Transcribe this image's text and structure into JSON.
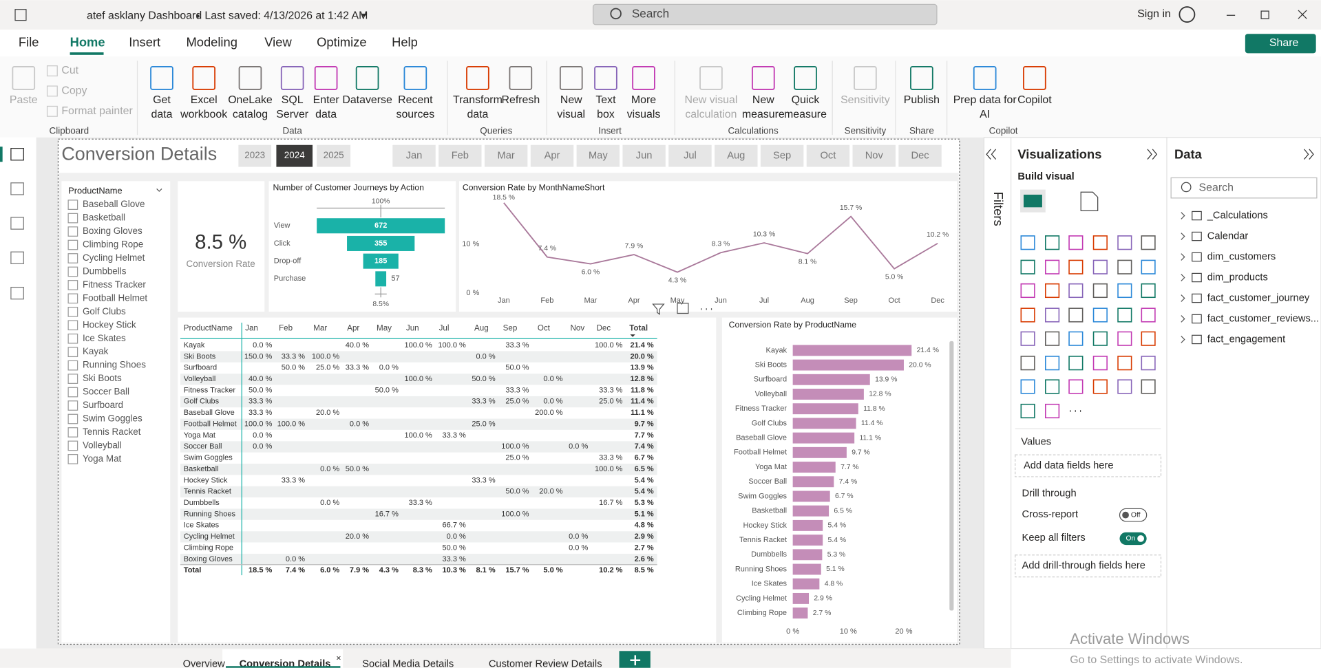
{
  "title_bar": {
    "file_name": "atef asklany Dashboard",
    "saved": "Last saved: 4/13/2026 at 1:42 AM",
    "search": "Search",
    "sign_in": "Sign in"
  },
  "menu": [
    "File",
    "Home",
    "Insert",
    "Modeling",
    "View",
    "Optimize",
    "Help"
  ],
  "share": "Share",
  "ribbon": [
    {
      "group": "Clipboard",
      "buttons": [
        [
          "Paste"
        ],
        [
          "Cut"
        ],
        [
          "Copy"
        ],
        [
          "Format painter"
        ]
      ]
    },
    {
      "group": "Data",
      "buttons": [
        [
          "Get",
          "data"
        ],
        [
          "Excel",
          "workbook"
        ],
        [
          "OneLake",
          "catalog"
        ],
        [
          "SQL",
          "Server"
        ],
        [
          "Enter",
          "data"
        ],
        [
          "Dataverse"
        ],
        [
          "Recent",
          "sources"
        ]
      ]
    },
    {
      "group": "Queries",
      "buttons": [
        [
          "Transform",
          "data"
        ],
        [
          "Refresh"
        ]
      ]
    },
    {
      "group": "Insert",
      "buttons": [
        [
          "New",
          "visual"
        ],
        [
          "Text",
          "box"
        ],
        [
          "More",
          "visuals"
        ]
      ]
    },
    {
      "group": "Calculations",
      "buttons": [
        [
          "New visual",
          "calculation"
        ],
        [
          "New",
          "measure"
        ],
        [
          "Quick",
          "measure"
        ]
      ]
    },
    {
      "group": "Sensitivity",
      "buttons": [
        [
          "Sensitivity"
        ]
      ]
    },
    {
      "group": "Share",
      "buttons": [
        [
          "Publish"
        ]
      ]
    },
    {
      "group": "Copilot",
      "buttons": [
        [
          "Prep data for",
          "AI"
        ],
        [
          "Copilot"
        ]
      ]
    }
  ],
  "report": {
    "title": "Conversion Details",
    "years": [
      "2023",
      "2024",
      "2025"
    ],
    "months": [
      "Jan",
      "Feb",
      "Mar",
      "Apr",
      "May",
      "Jun",
      "Jul",
      "Aug",
      "Sep",
      "Oct",
      "Nov",
      "Dec"
    ],
    "slicer": {
      "title": "ProductName",
      "items": [
        "Baseball Glove",
        "Basketball",
        "Boxing Gloves",
        "Climbing Rope",
        "Cycling Helmet",
        "Dumbbells",
        "Fitness Tracker",
        "Football Helmet",
        "Golf Clubs",
        "Hockey Stick",
        "Ice Skates",
        "Kayak",
        "Running Shoes",
        "Ski Boots",
        "Soccer Ball",
        "Surfboard",
        "Swim Goggles",
        "Tennis Racket",
        "Volleyball",
        "Yoga Mat"
      ]
    },
    "card": {
      "value": "8.5 %",
      "label": "Conversion Rate"
    },
    "matrix": {
      "columns": [
        "ProductName",
        "Jan",
        "Feb",
        "Mar",
        "Apr",
        "May",
        "Jun",
        "Jul",
        "Aug",
        "Sep",
        "Oct",
        "Nov",
        "Dec",
        "Total"
      ],
      "rows": [
        {
          "name": "Kayak",
          "cells": [
            "0.0 %",
            null,
            null,
            "40.0 %",
            null,
            "100.0 %",
            "100.0 %",
            null,
            "33.3 %",
            null,
            null,
            "100.0 %",
            "21.4 %"
          ]
        },
        {
          "name": "Ski Boots",
          "cells": [
            "150.0 %",
            "33.3 %",
            "100.0 %",
            null,
            null,
            null,
            null,
            "0.0 %",
            null,
            null,
            null,
            null,
            "20.0 %"
          ]
        },
        {
          "name": "Surfboard",
          "cells": [
            null,
            "50.0 %",
            "25.0 %",
            "33.3 %",
            "0.0 %",
            null,
            null,
            null,
            "50.0 %",
            null,
            null,
            null,
            "13.9 %"
          ]
        },
        {
          "name": "Volleyball",
          "cells": [
            "40.0 %",
            null,
            null,
            null,
            null,
            "100.0 %",
            null,
            "50.0 %",
            null,
            "0.0 %",
            null,
            null,
            "12.8 %"
          ]
        },
        {
          "name": "Fitness Tracker",
          "cells": [
            "50.0 %",
            null,
            null,
            null,
            "50.0 %",
            null,
            null,
            null,
            "33.3 %",
            null,
            null,
            "33.3 %",
            "11.8 %"
          ]
        },
        {
          "name": "Golf Clubs",
          "cells": [
            "33.3 %",
            null,
            null,
            null,
            null,
            null,
            null,
            "33.3 %",
            "25.0 %",
            "0.0 %",
            null,
            "25.0 %",
            "11.4 %"
          ]
        },
        {
          "name": "Baseball Glove",
          "cells": [
            "33.3 %",
            null,
            "20.0 %",
            null,
            null,
            null,
            null,
            null,
            null,
            "200.0 %",
            null,
            null,
            "11.1 %"
          ]
        },
        {
          "name": "Football Helmet",
          "cells": [
            "100.0 %",
            "100.0 %",
            null,
            "0.0 %",
            null,
            null,
            null,
            "25.0 %",
            null,
            null,
            null,
            null,
            "9.7 %"
          ]
        },
        {
          "name": "Yoga Mat",
          "cells": [
            "0.0 %",
            null,
            null,
            null,
            null,
            "100.0 %",
            "33.3 %",
            null,
            null,
            null,
            null,
            null,
            "7.7 %"
          ]
        },
        {
          "name": "Soccer Ball",
          "cells": [
            "0.0 %",
            null,
            null,
            null,
            null,
            null,
            null,
            null,
            "100.0 %",
            null,
            "0.0 %",
            null,
            "7.4 %"
          ]
        },
        {
          "name": "Swim Goggles",
          "cells": [
            null,
            null,
            null,
            null,
            null,
            null,
            null,
            null,
            "25.0 %",
            null,
            null,
            "33.3 %",
            "6.7 %"
          ]
        },
        {
          "name": "Basketball",
          "cells": [
            null,
            null,
            "0.0 %",
            "50.0 %",
            null,
            null,
            null,
            null,
            null,
            null,
            null,
            "100.0 %",
            "6.5 %"
          ]
        },
        {
          "name": "Hockey Stick",
          "cells": [
            null,
            "33.3 %",
            null,
            null,
            null,
            null,
            null,
            "33.3 %",
            null,
            null,
            null,
            null,
            "5.4 %"
          ]
        },
        {
          "name": "Tennis Racket",
          "cells": [
            null,
            null,
            null,
            null,
            null,
            null,
            null,
            null,
            "50.0 %",
            "20.0 %",
            null,
            null,
            "5.4 %"
          ]
        },
        {
          "name": "Dumbbells",
          "cells": [
            null,
            null,
            "0.0 %",
            null,
            null,
            "33.3 %",
            null,
            null,
            null,
            null,
            null,
            "16.7 %",
            "5.3 %"
          ]
        },
        {
          "name": "Running Shoes",
          "cells": [
            null,
            null,
            null,
            null,
            "16.7 %",
            null,
            null,
            null,
            "100.0 %",
            null,
            null,
            null,
            "5.1 %"
          ]
        },
        {
          "name": "Ice Skates",
          "cells": [
            null,
            null,
            null,
            null,
            null,
            null,
            "66.7 %",
            null,
            null,
            null,
            null,
            null,
            "4.8 %"
          ]
        },
        {
          "name": "Cycling Helmet",
          "cells": [
            null,
            null,
            null,
            "20.0 %",
            null,
            null,
            "0.0 %",
            null,
            null,
            null,
            "0.0 %",
            null,
            "2.9 %"
          ]
        },
        {
          "name": "Climbing Rope",
          "cells": [
            null,
            null,
            null,
            null,
            null,
            null,
            "50.0 %",
            null,
            null,
            null,
            "0.0 %",
            null,
            "2.7 %"
          ]
        },
        {
          "name": "Boxing Gloves",
          "cells": [
            null,
            "0.0 %",
            null,
            null,
            null,
            null,
            "33.3 %",
            null,
            null,
            null,
            null,
            null,
            "2.6 %"
          ]
        }
      ],
      "total": {
        "name": "Total",
        "cells": [
          "18.5 %",
          "7.4 %",
          "6.0 %",
          "7.9 %",
          "4.3 %",
          "8.3 %",
          "10.3 %",
          "8.1 %",
          "15.7 %",
          "5.0 %",
          null,
          "10.2 %",
          "8.5 %"
        ]
      }
    }
  },
  "chart_data": [
    {
      "type": "funnel",
      "title": "Number of Customer Journeys by Action",
      "categories": [
        "View",
        "Click",
        "Drop-off",
        "Purchase"
      ],
      "values": [
        672,
        355,
        185,
        57
      ],
      "color": "#1ab2a8",
      "annotations": [
        "100%",
        "8.5%"
      ]
    },
    {
      "type": "line",
      "title": "Conversion Rate by MonthNameShort",
      "categories": [
        "Jan",
        "Feb",
        "Mar",
        "Apr",
        "May",
        "Jun",
        "Jul",
        "Aug",
        "Sep",
        "Oct",
        "Dec"
      ],
      "values": [
        18.5,
        7.4,
        6.0,
        7.9,
        4.3,
        8.3,
        10.3,
        8.1,
        15.7,
        5.0,
        10.2
      ],
      "value_labels": [
        "18.5 %",
        "7.4 %",
        "6.0 %",
        "7.9 %",
        "4.3 %",
        "8.3 %",
        "10.3 %",
        "8.1 %",
        "15.7 %",
        "5.0 %",
        "10.2 %"
      ],
      "color": "#a9789a",
      "ylim": [
        0,
        20
      ],
      "yticks": [
        {
          "value": 0,
          "label": "0 %"
        },
        {
          "value": 10,
          "label": "10 %"
        }
      ]
    },
    {
      "type": "hbar",
      "title": "Conversion Rate by ProductName",
      "categories": [
        "Kayak",
        "Ski Boots",
        "Surfboard",
        "Volleyball",
        "Fitness Tracker",
        "Golf Clubs",
        "Baseball Glove",
        "Football Helmet",
        "Yoga Mat",
        "Soccer Ball",
        "Swim Goggles",
        "Basketball",
        "Hockey Stick",
        "Tennis Racket",
        "Dumbbells",
        "Running Shoes",
        "Ice Skates",
        "Cycling Helmet",
        "Climbing Rope"
      ],
      "values": [
        21.4,
        20.0,
        13.9,
        12.8,
        11.8,
        11.4,
        11.1,
        9.7,
        7.7,
        7.4,
        6.7,
        6.5,
        5.4,
        5.4,
        5.3,
        5.1,
        4.8,
        2.9,
        2.7
      ],
      "value_labels": [
        "21.4 %",
        "20.0 %",
        "13.9 %",
        "12.8 %",
        "11.8 %",
        "11.4 %",
        "11.1 %",
        "9.7 %",
        "7.7 %",
        "7.4 %",
        "6.7 %",
        "6.5 %",
        "5.4 %",
        "5.4 %",
        "5.3 %",
        "5.1 %",
        "4.8 %",
        "2.9 %",
        "2.7 %"
      ],
      "color": "#c48db8",
      "xlim": [
        0,
        25
      ],
      "xticks": [
        {
          "value": 0,
          "label": "0 %"
        },
        {
          "value": 10,
          "label": "10 %"
        },
        {
          "value": 20,
          "label": "20 %"
        }
      ]
    }
  ],
  "filters": "Filters",
  "visualizations": {
    "title": "Visualizations",
    "build": "Build visual",
    "values": "Values",
    "values_box": "Add data fields here",
    "drill": "Drill through",
    "cross_report": "Cross-report",
    "off": "Off",
    "keep_filters": "Keep all filters",
    "on": "On",
    "drill_box": "Add drill-through fields here"
  },
  "data_pane": {
    "title": "Data",
    "search": "Search",
    "tables": [
      "_Calculations",
      "Calendar",
      "dim_customers",
      "dim_products",
      "fact_customer_journey",
      "fact_customer_reviews...",
      "fact_engagement"
    ]
  },
  "pages": [
    "Overview",
    "Conversion Details",
    "Social Media Details",
    "Customer Review Details"
  ],
  "watermark": {
    "title": "Activate Windows",
    "text": "Go to Settings to activate Windows."
  }
}
